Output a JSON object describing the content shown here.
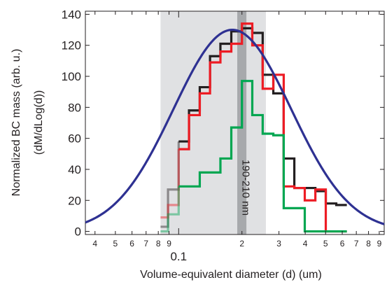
{
  "chart_data": {
    "type": "line",
    "xscale": "log",
    "xlim": [
      0.036,
      0.95
    ],
    "ylim": [
      -2,
      142
    ],
    "xlabel": "Volume-equivalent diameter (d) (um)",
    "ylabel_line1": "Normalized BC mass (arb. u.)",
    "ylabel_line2": "(dM/dLog(d))",
    "yticks": [
      0,
      20,
      40,
      60,
      80,
      100,
      120,
      140
    ],
    "xticks_major": [
      {
        "value": 0.1,
        "label": "0.1"
      }
    ],
    "xticks_minor": [
      {
        "value": 0.04,
        "label": "4"
      },
      {
        "value": 0.05,
        "label": "5"
      },
      {
        "value": 0.06,
        "label": "6"
      },
      {
        "value": 0.07,
        "label": "7"
      },
      {
        "value": 0.08,
        "label": "8"
      },
      {
        "value": 0.09,
        "label": "9"
      },
      {
        "value": 0.2,
        "label": "2"
      },
      {
        "value": 0.3,
        "label": "3"
      },
      {
        "value": 0.4,
        "label": "4"
      },
      {
        "value": 0.5,
        "label": "5"
      },
      {
        "value": 0.6,
        "label": "6"
      },
      {
        "value": 0.7,
        "label": "7"
      },
      {
        "value": 0.8,
        "label": "8"
      },
      {
        "value": 0.9,
        "label": "9"
      }
    ],
    "shaded_range": {
      "x": [
        0.082,
        0.26
      ],
      "color": "#e0e1e3"
    },
    "band": {
      "x": [
        0.19,
        0.21
      ],
      "label": "190-210 nm",
      "color": "#a7a9ac"
    },
    "edges": [
      0.082,
      0.089,
      0.1,
      0.112,
      0.126,
      0.141,
      0.158,
      0.178,
      0.2,
      0.224,
      0.251,
      0.282,
      0.316,
      0.355,
      0.398,
      0.447,
      0.501,
      0.562,
      0.631
    ],
    "series": [
      {
        "color": "#231f20",
        "faded_bins": 2,
        "values": [
          3,
          27,
          58,
          78,
          93,
          113,
          121,
          129,
          131,
          128,
          101,
          89,
          47,
          28,
          28,
          26,
          18,
          17
        ]
      },
      {
        "color": "#ed1c24",
        "faded_bins": 2,
        "values": [
          9,
          17,
          53,
          75,
          89,
          109,
          116,
          121,
          134,
          120,
          92,
          101,
          29,
          28,
          20,
          27,
          0,
          0
        ]
      },
      {
        "color": "#00a651",
        "faded_bins": 2,
        "values": [
          0,
          11,
          29,
          29,
          38,
          38,
          47,
          67,
          97,
          75,
          63,
          62,
          15,
          15,
          0,
          0,
          0,
          0
        ]
      }
    ],
    "fit": {
      "color": "#2e3192",
      "amplitude": 130,
      "center": 0.18,
      "width_log10": 0.28
    },
    "fit_xrange": [
      0.036,
      0.95
    ]
  }
}
